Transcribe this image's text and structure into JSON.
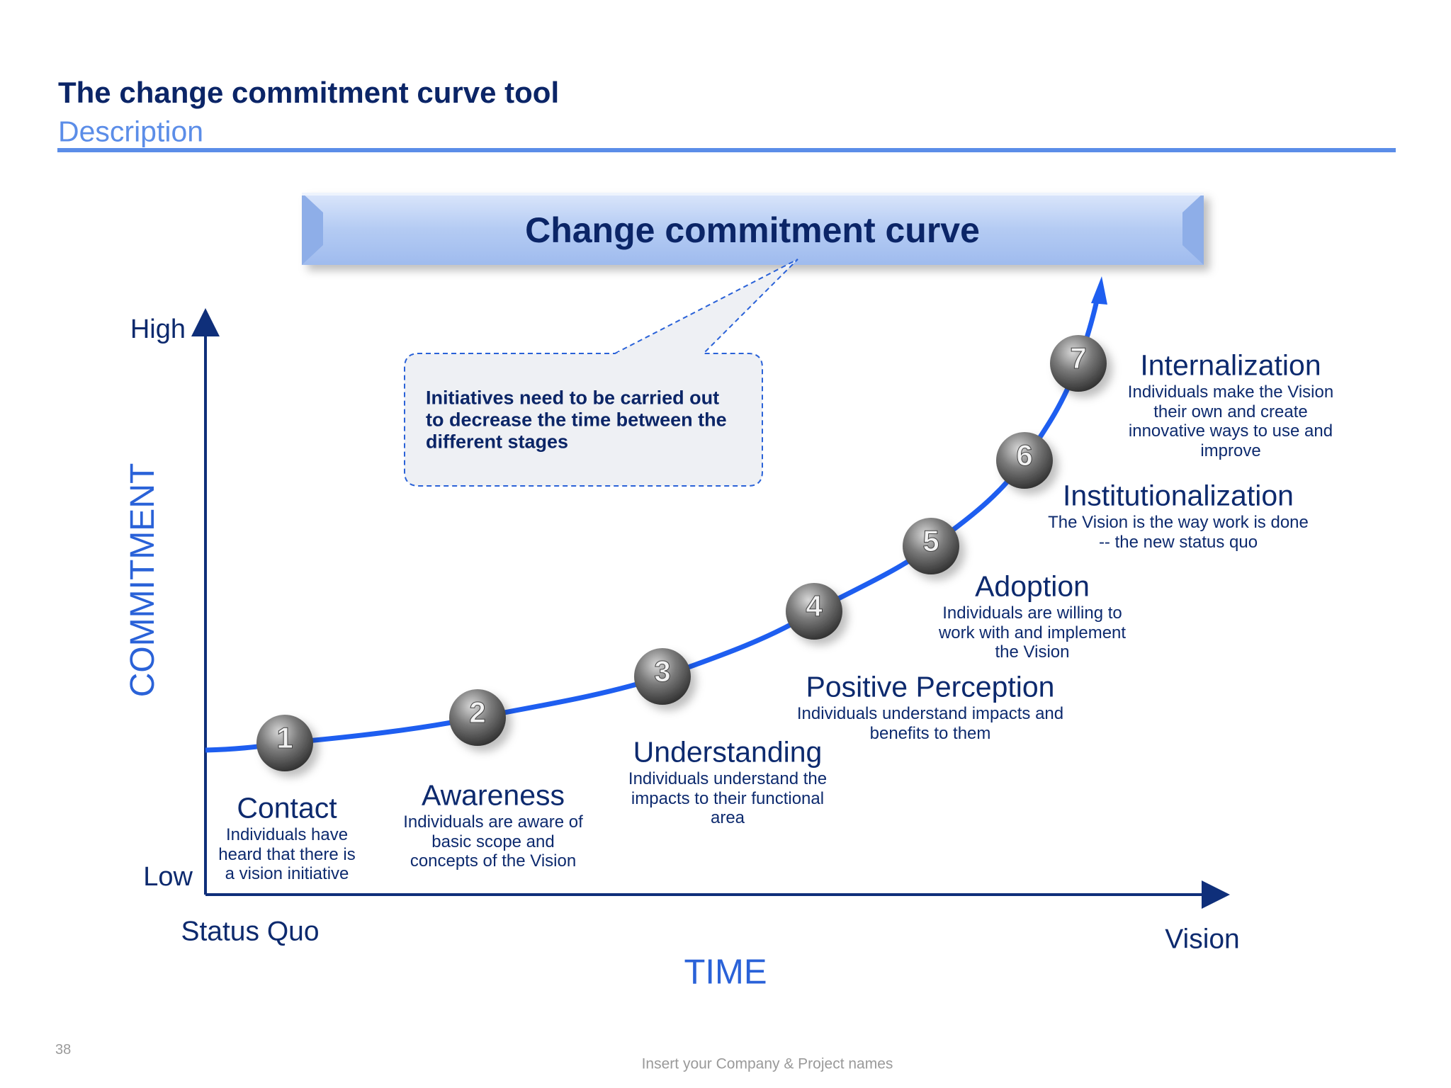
{
  "header": {
    "title": "The change commitment curve tool",
    "subtitle": "Description"
  },
  "banner": "Change commitment curve",
  "callout": [
    "Initiatives need to be carried out",
    "to decrease the time between the",
    "different stages"
  ],
  "axes": {
    "high": "High",
    "low": "Low",
    "y_title": "COMMITMENT",
    "start": "Status Quo",
    "end": "Vision",
    "x_title": "TIME"
  },
  "stages": [
    {
      "number": 1,
      "name": "Contact",
      "description": [
        "Individuals have",
        "heard that there is",
        "a vision initiative"
      ]
    },
    {
      "number": 2,
      "name": "Awareness",
      "description": [
        "Individuals are aware of",
        "basic scope and",
        "concepts of the Vision"
      ]
    },
    {
      "number": 3,
      "name": "Understanding",
      "description": [
        "Individuals understand the",
        "impacts to their functional",
        "area"
      ]
    },
    {
      "number": 4,
      "name": "Positive Perception",
      "description": [
        "Individuals understand impacts and",
        "benefits to them"
      ]
    },
    {
      "number": 5,
      "name": "Adoption",
      "description": [
        "Individuals are willing to",
        "work with and implement",
        "the Vision"
      ]
    },
    {
      "number": 6,
      "name": "Institutionalization",
      "description": [
        "The Vision is the way work is done",
        "-- the new status quo"
      ]
    },
    {
      "number": 7,
      "name": "Internalization",
      "description": [
        "Individuals make the Vision",
        "their own and create",
        "innovative ways to use and",
        "improve"
      ]
    }
  ],
  "footer": {
    "page": "38",
    "note": "Insert your Company & Project names"
  }
}
